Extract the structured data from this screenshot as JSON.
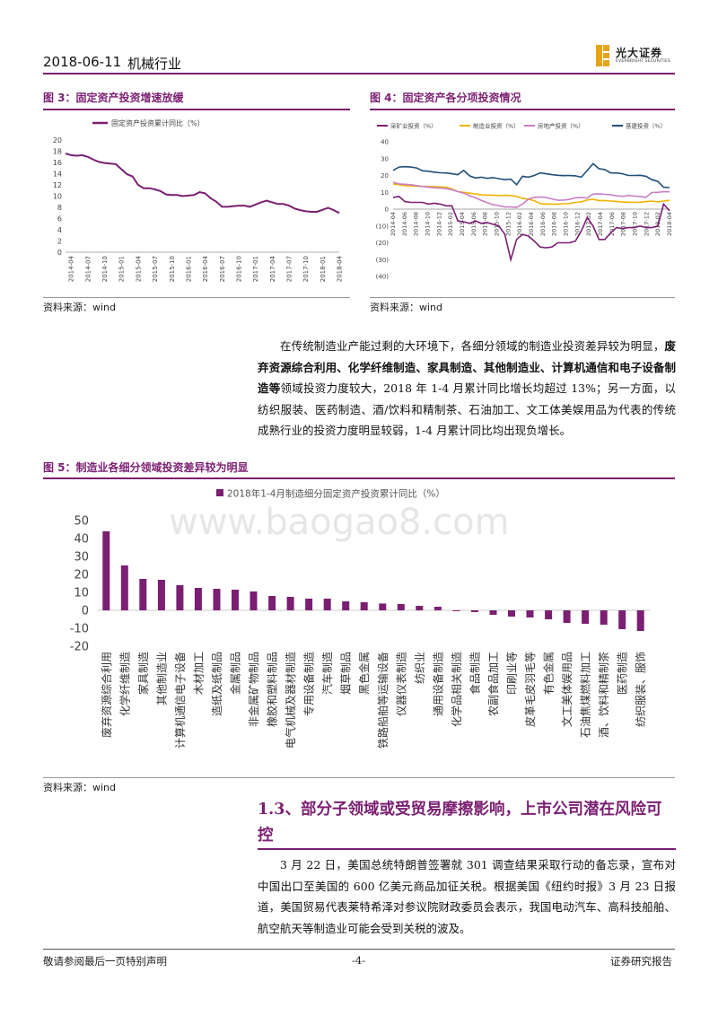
{
  "header": {
    "date": "2018-06-11",
    "industry": "机械行业",
    "logo_cn": "光大证券",
    "logo_en": "EVERBRIGHT SECURITIES",
    "accent": "#7b1f72"
  },
  "fig3": {
    "title": "图 3：固定资产投资增速放缓",
    "source": "资料来源：wind",
    "chart_data": {
      "type": "line",
      "legend": "固定资产投资累计同比（%）",
      "ylim": [
        0,
        20
      ],
      "yticks": [
        0,
        2,
        4,
        6,
        8,
        10,
        12,
        14,
        16,
        18,
        20
      ],
      "xticks": [
        "2014-04",
        "2014-07",
        "2014-10",
        "2015-01",
        "2015-04",
        "2015-07",
        "2015-10",
        "2016-01",
        "2016-04",
        "2016-07",
        "2016-10",
        "2017-01",
        "2017-04",
        "2017-07",
        "2017-10",
        "2018-01",
        "2018-04"
      ],
      "x": [
        "2014-03",
        "2014-04",
        "2014-05",
        "2014-06",
        "2014-07",
        "2014-08",
        "2014-09",
        "2014-10",
        "2014-11",
        "2014-12",
        "2015-02",
        "2015-03",
        "2015-04",
        "2015-05",
        "2015-06",
        "2015-07",
        "2015-08",
        "2015-09",
        "2015-10",
        "2015-11",
        "2015-12",
        "2016-02",
        "2016-03",
        "2016-04",
        "2016-05",
        "2016-06",
        "2016-07",
        "2016-08",
        "2016-09",
        "2016-10",
        "2016-11",
        "2016-12",
        "2017-02",
        "2017-03",
        "2017-04",
        "2017-05",
        "2017-06",
        "2017-07",
        "2017-08",
        "2017-09",
        "2017-10",
        "2017-11",
        "2017-12",
        "2018-02",
        "2018-03",
        "2018-04"
      ],
      "values": [
        17.6,
        17.3,
        17.2,
        17.3,
        17.0,
        16.5,
        16.1,
        15.9,
        15.8,
        15.7,
        13.9,
        13.5,
        12.0,
        11.4,
        11.4,
        11.2,
        10.9,
        10.3,
        10.2,
        10.2,
        10.0,
        10.2,
        10.7,
        10.5,
        9.6,
        9.0,
        8.1,
        8.1,
        8.2,
        8.3,
        8.3,
        8.1,
        8.9,
        9.2,
        8.9,
        8.6,
        8.6,
        8.3,
        7.8,
        7.5,
        7.3,
        7.2,
        7.2,
        7.9,
        7.5,
        7.0
      ],
      "color": "#7b1f72"
    }
  },
  "fig4": {
    "title": "图 4：固定资产各分项投资情况",
    "source": "资料来源：wind",
    "chart_data": {
      "type": "line",
      "ylim": [
        -40,
        40
      ],
      "yticks": [
        "40",
        "30",
        "20",
        "10",
        "0",
        "(10)",
        "(20)",
        "(30)",
        "(40)"
      ],
      "xticks": [
        "2014-04",
        "2014-06",
        "2014-08",
        "2014-10",
        "2014-12",
        "2015-02",
        "2015-04",
        "2015-06",
        "2015-08",
        "2015-10",
        "2015-12",
        "2016-02",
        "2016-04",
        "2016-06",
        "2016-08",
        "2016-10",
        "2016-12",
        "2017-02",
        "2017-04",
        "2017-06",
        "2017-08",
        "2017-10",
        "2017-12",
        "2018-02",
        "2018-04"
      ],
      "series": [
        {
          "name": "采矿业投资（%）",
          "color": "#7b1f72",
          "values": [
            7,
            7.5,
            4.5,
            4,
            4,
            4,
            3,
            3.5,
            3,
            2,
            2,
            -7,
            -7.5,
            -8.5,
            -7,
            -8.5,
            -8,
            -9,
            -10,
            -15,
            -30,
            -18,
            -15,
            -16,
            -19,
            -22.5,
            -23,
            -22.5,
            -20,
            -20,
            -20,
            -19,
            -13,
            -5,
            -10,
            -18,
            -18,
            -14,
            -11,
            -11.5,
            -11,
            -11,
            -10,
            -11,
            -11,
            -10,
            3,
            -1
          ]
        },
        {
          "name": "制造业投资（%）",
          "color": "#f0b400",
          "values": [
            15,
            14.5,
            14,
            13.8,
            13.6,
            13.5,
            13.5,
            13.4,
            13.2,
            13,
            12,
            10.4,
            10,
            9.5,
            9,
            8.5,
            8.3,
            8.2,
            8.1,
            8.2,
            8.1,
            7.5,
            6.4,
            6,
            5,
            3.3,
            3,
            3,
            3,
            3.2,
            3.3,
            4,
            4.3,
            5.5,
            5.8,
            5.1,
            5.1,
            4.8,
            4.6,
            4.2,
            4.1,
            4,
            4.1,
            4.5,
            4.8,
            4.3,
            4.8,
            5.2
          ]
        },
        {
          "name": "房地产投资（%）",
          "color": "#c97ec4",
          "values": [
            16,
            15,
            14.8,
            14.5,
            14,
            13.5,
            13,
            12.7,
            12.5,
            12.2,
            11.5,
            10.4,
            9.5,
            8,
            6.8,
            5.1,
            3.9,
            2.6,
            2.1,
            1.3,
            1.3,
            1,
            3,
            6,
            7,
            7.2,
            6.9,
            6.1,
            5.3,
            5.4,
            5.8,
            6.7,
            6.9,
            6.6,
            8.9,
            9.1,
            8.8,
            8.5,
            7.9,
            7.6,
            8.1,
            7.8,
            7.5,
            7,
            9.9,
            10,
            10.4,
            10.3
          ]
        },
        {
          "name": "基建投资（%）",
          "color": "#1f4e79",
          "values": [
            23,
            25,
            25.2,
            25,
            24.5,
            22.8,
            22.5,
            22,
            21.6,
            21.5,
            21,
            20.5,
            23,
            19.8,
            18.5,
            19,
            18.3,
            18.7,
            18.1,
            17.5,
            17.8,
            14.5,
            19.5,
            19,
            20,
            21.5,
            21,
            20.5,
            20.1,
            19.9,
            20,
            19.8,
            19,
            23,
            27,
            24,
            23.5,
            21.5,
            21.5,
            21,
            20,
            20,
            20.1,
            19.5,
            17.5,
            16.5,
            13,
            12.8
          ]
        }
      ]
    }
  },
  "para1": {
    "t1": "在传统制造业产能过剩的大环境下，各细分领域的制造业投资差异较为明显，",
    "bold": "废弃资源综合利用、化学纤维制造、家具制造、其他制造业、计算机通信和电子设备制造等",
    "t2": "领域投资力度较大，2018 年 1-4 月累计同比增长均超过 13%；另一方面，以纺织服装、医药制造、酒/饮料和精制茶、石油加工、文工体美娱用品为代表的传统成熟行业的投资力度明显较弱，1-4 月累计同比均出现负增长。"
  },
  "fig5": {
    "title": "图 5：制造业各细分领域投资差异较为明显",
    "source": "资料来源：wind",
    "watermark": "www.baogao8.com",
    "chart_data": {
      "type": "bar",
      "legend": "2018年1-4月制造细分固定资产投资累计同比（%）",
      "ylim": [
        -20,
        50
      ],
      "yticks": [
        50,
        40,
        30,
        20,
        10,
        0,
        -10,
        -20
      ],
      "color": "#7b1f72",
      "categories": [
        "废弃资源综合利用",
        "化学纤维制造",
        "家具制造",
        "其他制造业",
        "计算机通信电子设备",
        "木材加工",
        "造纸及纸制品",
        "金属制品",
        "非金属矿物制品",
        "橡胶和塑料制品",
        "电气机械及器材制造",
        "专用设备制造",
        "汽车制造",
        "烟草制品",
        "黑色金属",
        "铁路船舶等运输设备",
        "仪器仪表制造",
        "纺织业",
        "通用设备制造",
        "化学品相关制造",
        "食品制造",
        "农副食品加工",
        "印刷业等",
        "皮革毛皮羽毛等",
        "有色金属",
        "文工美体娱用品",
        "石油焦煤燃料加工",
        "酒、饮料和精制茶",
        "医药制造",
        "纺织服装、服饰"
      ],
      "values": [
        44,
        25,
        17.5,
        17,
        14,
        12.5,
        12,
        11.5,
        10.5,
        8,
        7.5,
        6.5,
        6.5,
        5,
        4.5,
        3.8,
        3.5,
        2.5,
        2,
        -0.5,
        -1,
        -2.5,
        -3.5,
        -4,
        -5,
        -7,
        -7.5,
        -8,
        -10.5,
        -11.5
      ]
    }
  },
  "section": {
    "title": "1.3、部分子领域或受贸易摩擦影响，上市公司潜在风险可控"
  },
  "para2": {
    "text": "3 月 22 日，美国总统特朗普签署就 301 调查结果采取行动的备忘录，宣布对中国出口至美国的 600 亿美元商品加征关税。根据美国《纽约时报》3 月 23 日报道，美国贸易代表莱特希泽对参议院财政委员会表示，我国电动汽车、高科技船舶、航空航天等制造业可能会受到关税的波及。"
  },
  "footer": {
    "left": "敬请参阅最后一页特别声明",
    "center": "-4-",
    "right": "证券研究报告"
  }
}
